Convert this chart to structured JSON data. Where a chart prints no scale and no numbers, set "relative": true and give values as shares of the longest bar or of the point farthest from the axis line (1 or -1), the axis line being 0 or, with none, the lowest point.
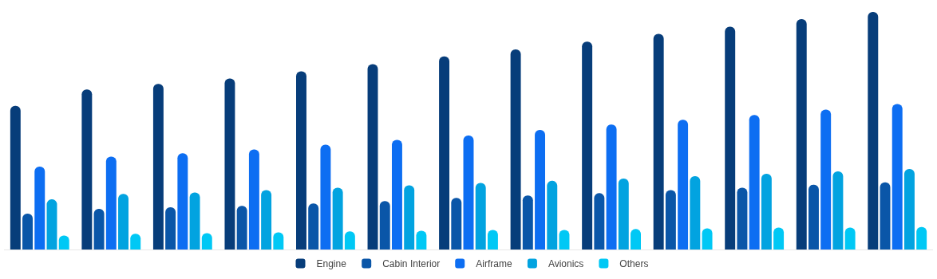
{
  "chart_data": {
    "type": "bar",
    "relative": true,
    "legend": "bottom",
    "categories": [
      null,
      null,
      null,
      null,
      null,
      null,
      null,
      null,
      null,
      null,
      null,
      null,
      null
    ],
    "series": [
      {
        "name": "Engine",
        "color": "#073d7a",
        "values": [
          0.605,
          0.674,
          0.697,
          0.72,
          0.75,
          0.78,
          0.813,
          0.842,
          0.875,
          0.908,
          0.938,
          0.97,
          1
        ]
      },
      {
        "name": "Cabin Interior",
        "color": "#0a56a8",
        "values": [
          0.151,
          0.171,
          0.178,
          0.184,
          0.194,
          0.204,
          0.217,
          0.227,
          0.237,
          0.25,
          0.26,
          0.273,
          0.283
        ]
      },
      {
        "name": "Airframe",
        "color": "#0d6ef2",
        "values": [
          0.349,
          0.391,
          0.405,
          0.421,
          0.441,
          0.461,
          0.48,
          0.503,
          0.526,
          0.546,
          0.566,
          0.589,
          0.612
        ]
      },
      {
        "name": "Avionics",
        "color": "#02a3e0",
        "values": [
          0.211,
          0.234,
          0.24,
          0.25,
          0.26,
          0.27,
          0.28,
          0.289,
          0.299,
          0.309,
          0.319,
          0.329,
          0.339
        ]
      },
      {
        "name": "Others",
        "color": "#00c8f5",
        "values": [
          0.059,
          0.066,
          0.069,
          0.072,
          0.076,
          0.079,
          0.082,
          0.082,
          0.086,
          0.089,
          0.092,
          0.092,
          0.095
        ]
      }
    ]
  }
}
